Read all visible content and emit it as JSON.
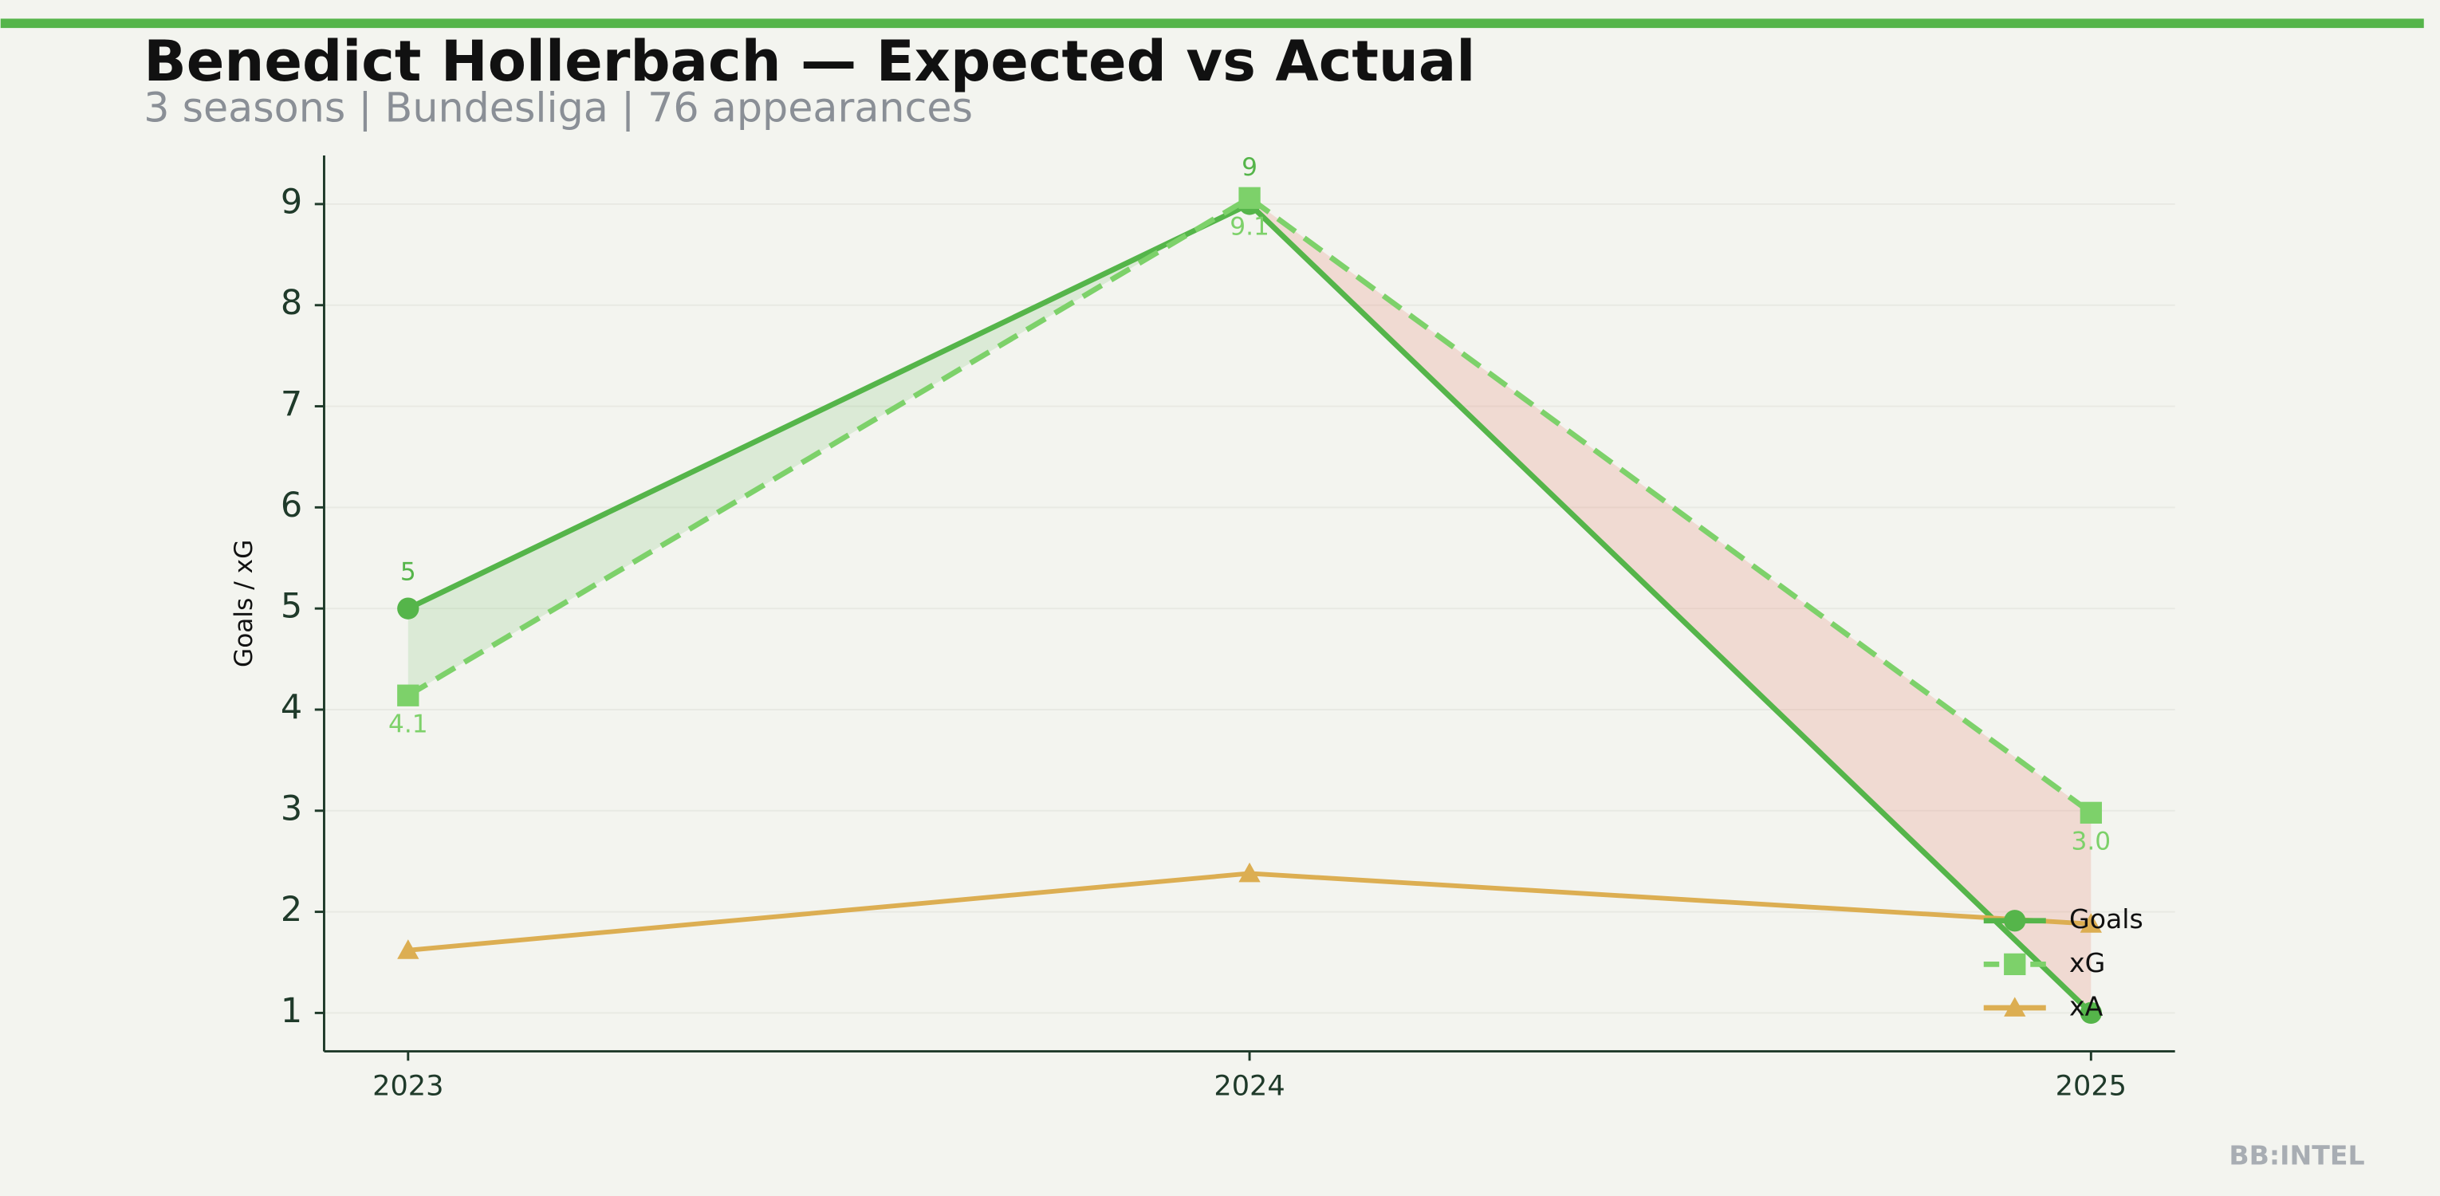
{
  "chart_data": {
    "type": "line",
    "title": "Benedict Hollerbach — Expected vs Actual",
    "subtitle": "3 seasons | Bundesliga | 76 appearances",
    "y_label": "Goals / xG",
    "footer": "BB:INTEL",
    "categories": [
      "2023",
      "2024",
      "2025"
    ],
    "series": [
      {
        "name": "Goals",
        "color": "#55b54a",
        "marker": "circle",
        "dash": false,
        "values": [
          5,
          9,
          1
        ],
        "value_labels": [
          "5",
          "9",
          null
        ]
      },
      {
        "name": "xG",
        "color": "#7dd16a",
        "marker": "square",
        "dash": true,
        "values": [
          4.14,
          9.06,
          2.98
        ],
        "value_labels": [
          "4.1",
          "9.1",
          "3.0"
        ]
      },
      {
        "name": "xA",
        "color": "#dcae52",
        "marker": "triangle",
        "dash": false,
        "values": [
          1.62,
          2.38,
          1.88
        ]
      }
    ],
    "fill_over": "#55b54a",
    "fill_under": "#e8806e",
    "ylim": [
      0.62,
      9.48
    ],
    "yticks": [
      1,
      2,
      3,
      4,
      5,
      6,
      7,
      8,
      9
    ],
    "grid": true,
    "legend": "lower right"
  }
}
